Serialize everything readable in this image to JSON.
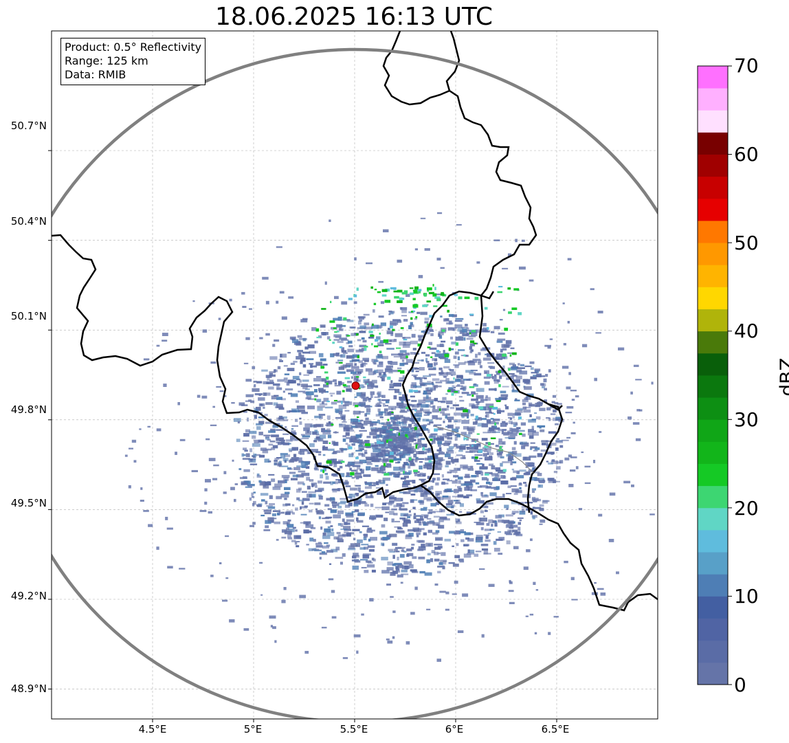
{
  "title": "18.06.2025 16:13 UTC",
  "info": {
    "product": "Product: 0.5° Reflectivity",
    "range": "Range: 125 km",
    "source": "Data: RMIB"
  },
  "lat_ticks": [
    "50.7°N",
    "50.4°N",
    "50.1°N",
    "49.8°N",
    "49.5°N",
    "49.2°N",
    "48.9°N"
  ],
  "lon_ticks": [
    "4.5°E",
    "5°E",
    "5.5°E",
    "6°E",
    "6.5°E"
  ],
  "colorbar": {
    "label": "dBZ",
    "ticks": [
      "70",
      "60",
      "50",
      "40",
      "30",
      "20",
      "10",
      "0"
    ],
    "min": 0,
    "max": 70,
    "colors": [
      "#6574a8",
      "#5a6ca6",
      "#5064a4",
      "#435fa2",
      "#4e7eb5",
      "#58a0c8",
      "#5fbcdd",
      "#60d6c5",
      "#3dd672",
      "#15c925",
      "#12b51a",
      "#10a617",
      "#0d8f13",
      "#0b780e",
      "#095f0a",
      "#4a7a0a",
      "#b0b40a",
      "#ffd700",
      "#ffb400",
      "#ff9800",
      "#ff7800",
      "#e60000",
      "#c80000",
      "#a00000",
      "#780000",
      "#ffe0ff",
      "#ffb0ff",
      "#ff70ff",
      "#ee38ee"
    ]
  },
  "radar_site": {
    "lon": 5.505,
    "lat": 49.914,
    "color": "#e01010"
  },
  "colors": {
    "range_ring": "#808080",
    "border": "#000000",
    "echo": "#5f6fa8",
    "grid": "#aaaaaa"
  }
}
